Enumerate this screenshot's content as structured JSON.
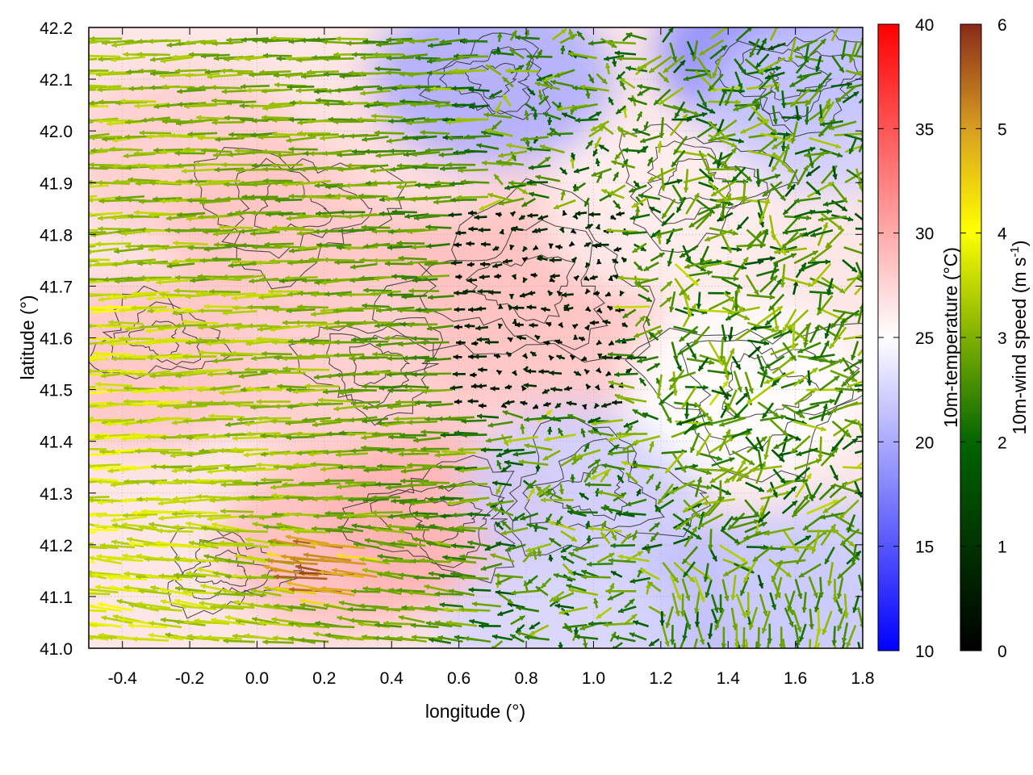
{
  "chart_data": {
    "type": "heatmap",
    "title": "",
    "xlabel": "longitude (°)",
    "ylabel": "latitude (°)",
    "xlim": [
      -0.5,
      1.8
    ],
    "ylim": [
      41.0,
      42.2
    ],
    "x_ticks": [
      "-0.4",
      "-0.2",
      "0.0",
      "0.2",
      "0.4",
      "0.6",
      "0.8",
      "1.0",
      "1.2",
      "1.4",
      "1.6",
      "1.8"
    ],
    "y_ticks": [
      "41.0",
      "41.1",
      "41.2",
      "41.3",
      "41.4",
      "41.5",
      "41.6",
      "41.7",
      "41.8",
      "41.9",
      "42.0",
      "42.1",
      "42.2"
    ],
    "grid": "dotted",
    "overlays": [
      "temperature field (heatmap)",
      "terrain contour lines",
      "wind vectors (arrows)"
    ],
    "temperature_colorbar": {
      "label": "10m-temperature (°C)",
      "range": [
        10,
        40
      ],
      "ticks": [
        "10",
        "15",
        "20",
        "25",
        "30",
        "35",
        "40"
      ],
      "colors": [
        "#0000ff",
        "#ffffff",
        "#ff0000"
      ]
    },
    "wind_colorbar": {
      "label_main": "10m-wind speed (m s",
      "label_sup": "-1",
      "label_end": ")",
      "range": [
        0,
        6
      ],
      "ticks": [
        "0",
        "1",
        "2",
        "3",
        "4",
        "5",
        "6"
      ],
      "colors": [
        "#000000",
        "#006400",
        "#7fb000",
        "#ffff00",
        "#d8a020",
        "#8b2a1a"
      ]
    },
    "temperature_regions": [
      {
        "lon": -0.35,
        "lat": 41.55,
        "temp_c": 28.5
      },
      {
        "lon": -0.2,
        "lat": 41.95,
        "temp_c": 28
      },
      {
        "lon": 0.1,
        "lat": 41.8,
        "temp_c": 28.5
      },
      {
        "lon": 0.3,
        "lat": 41.5,
        "temp_c": 28
      },
      {
        "lon": 0.25,
        "lat": 41.2,
        "temp_c": 29
      },
      {
        "lon": 0.55,
        "lat": 41.25,
        "temp_c": 29.5
      },
      {
        "lon": 0.75,
        "lat": 41.75,
        "temp_c": 29
      },
      {
        "lon": 0.85,
        "lat": 41.6,
        "temp_c": 28.5
      },
      {
        "lon": 0.55,
        "lat": 42.0,
        "temp_c": 27
      },
      {
        "lon": 1.2,
        "lat": 41.85,
        "temp_c": 26
      },
      {
        "lon": 0.7,
        "lat": 42.1,
        "temp_c": 20
      },
      {
        "lon": 1.55,
        "lat": 42.15,
        "temp_c": 18
      },
      {
        "lon": 1.7,
        "lat": 42.05,
        "temp_c": 22
      },
      {
        "lon": 0.97,
        "lat": 41.3,
        "temp_c": 22
      },
      {
        "lon": 1.45,
        "lat": 41.08,
        "temp_c": 21
      },
      {
        "lon": 1.75,
        "lat": 41.12,
        "temp_c": 22
      },
      {
        "lon": 1.45,
        "lat": 41.5,
        "temp_c": 25
      },
      {
        "lon": 0.9,
        "lat": 41.03,
        "temp_c": 22.5
      }
    ],
    "wind_field": {
      "dominant_direction": "east-to-west (easterly) over western half",
      "speed_range_ms": [
        0,
        6
      ],
      "max_speed_region": {
        "lon": 0.25,
        "lat": 41.15,
        "speed_ms": 5.8
      }
    }
  }
}
